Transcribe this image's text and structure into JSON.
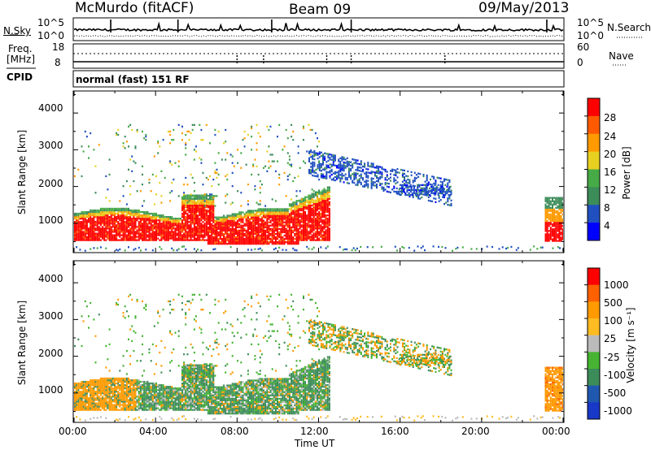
{
  "header": {
    "station": "McMurdo (fitACF)",
    "beam": "Beam 09",
    "date": "09/May/2013"
  },
  "nsky": {
    "left_label": "N.Sky",
    "right_label": "N.Search",
    "left_ticks": [
      "10^5",
      "10^0"
    ],
    "right_ticks": [
      "10^5",
      "10^0"
    ]
  },
  "freq": {
    "left_label_line1": "Freq.",
    "left_label_line2": "[MHz]",
    "right_label": "Nave",
    "left_ticks": [
      "18",
      "8"
    ],
    "right_ticks": [
      "60",
      "0"
    ]
  },
  "cpid": {
    "label": "CPID",
    "value": "normal (fast) 151 RF"
  },
  "x_axis": {
    "label": "Time UT",
    "ticks": [
      "00:00",
      "04:00",
      "08:00",
      "12:00",
      "16:00",
      "20:00",
      "00:00"
    ]
  },
  "colors": {
    "power": [
      "#0000ff",
      "#2050c0",
      "#3c8c5a",
      "#46aa46",
      "#e8d020",
      "#ff9a00",
      "#ff5a00",
      "#ff0000"
    ],
    "velocity": [
      "#ff0000",
      "#ff6000",
      "#ff9a00",
      "#ffbb22",
      "#bbbbbb",
      "#46b432",
      "#3c8c5a",
      "#2058b0",
      "#1838c8"
    ]
  },
  "chart_data": [
    {
      "type": "heatmap",
      "title": "",
      "xlabel": "",
      "ylabel": "Slant Range [km]",
      "y_ticks": [
        "1000",
        "2000",
        "3000",
        "4000"
      ],
      "ylim": [
        200,
        4600
      ],
      "xlim_hours": [
        0,
        24
      ],
      "colorbar": {
        "label": "Power [dB]",
        "ticks": [
          "4",
          "8",
          "12",
          "16",
          "20",
          "24",
          "28"
        ],
        "range": [
          0,
          32
        ]
      }
    },
    {
      "type": "heatmap",
      "title": "",
      "xlabel": "Time UT",
      "ylabel": "Slant Range [km]",
      "y_ticks": [
        "1000",
        "2000",
        "3000",
        "4000"
      ],
      "ylim": [
        200,
        4600
      ],
      "xlim_hours": [
        0,
        24
      ],
      "colorbar": {
        "label": "Velocity [m s⁻¹]",
        "ticks": [
          "1000",
          "500",
          "100",
          "25",
          "-25",
          "-100",
          "-500",
          "-1000"
        ]
      }
    }
  ]
}
